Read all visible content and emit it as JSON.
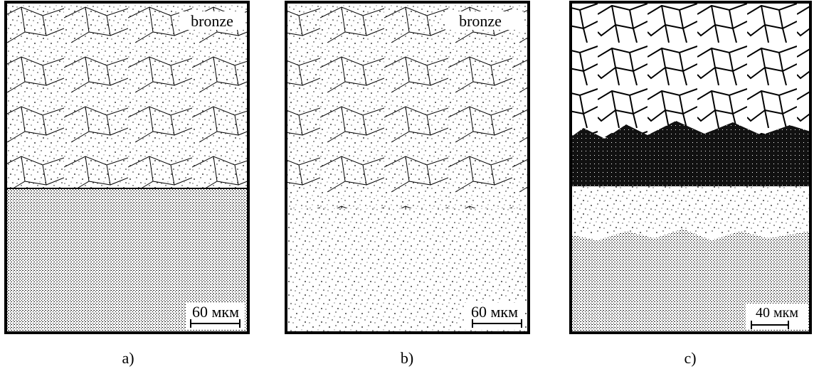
{
  "panels": [
    {
      "label": "a)",
      "material": "bronze",
      "scale": "60 мкм"
    },
    {
      "label": "b)",
      "material": "bronze",
      "scale": "60 мкм"
    },
    {
      "label": "c)",
      "scale": "40 мкм"
    }
  ]
}
